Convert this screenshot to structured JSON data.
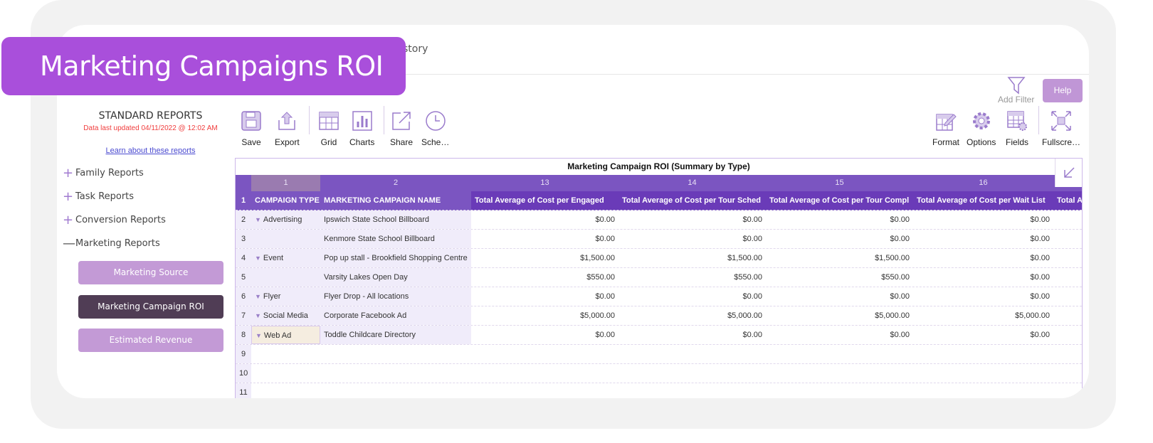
{
  "banner": {
    "title": "Marketing Campaigns ROI"
  },
  "nav": {
    "partial_tab": "story"
  },
  "sidebar": {
    "title": "STANDARD REPORTS",
    "updated": "Data last updated 04/11/2022 @ 12:02 AM",
    "learn_link": "Learn about these reports",
    "categories": [
      {
        "label": "Family Reports",
        "state": "collapsed"
      },
      {
        "label": "Task Reports",
        "state": "collapsed"
      },
      {
        "label": "Conversion Reports",
        "state": "collapsed"
      },
      {
        "label": "Marketing Reports",
        "state": "expanded"
      }
    ],
    "reports": [
      {
        "label": "Marketing Source",
        "active": false
      },
      {
        "label": "Marketing Campaign ROI",
        "active": true
      },
      {
        "label": "Estimated Revenue",
        "active": false
      }
    ],
    "colors": {
      "inactive": "#c39ad6",
      "active": "#503d55"
    }
  },
  "toolbar": {
    "left": [
      {
        "label": "Save",
        "icon": "save-icon"
      },
      {
        "label": "Export",
        "icon": "export-icon"
      },
      {
        "label": "Grid",
        "icon": "grid-icon"
      },
      {
        "label": "Charts",
        "icon": "charts-icon"
      },
      {
        "label": "Share",
        "icon": "share-icon"
      },
      {
        "label": "Sche…",
        "icon": "clock-icon"
      }
    ],
    "right": [
      {
        "label": "Format",
        "icon": "format-icon"
      },
      {
        "label": "Options",
        "icon": "gear-icon"
      },
      {
        "label": "Fields",
        "icon": "fields-icon"
      },
      {
        "label": "Fullscre…",
        "icon": "fullscreen-icon"
      }
    ],
    "add_filter": "Add Filter",
    "help": "Help"
  },
  "grid": {
    "title": "Marketing Campaign ROI (Summary by Type)",
    "column_numbers": [
      "1",
      "2",
      "13",
      "14",
      "15",
      "16",
      ""
    ],
    "headers": [
      "CAMPAIGN TYPE",
      "MARKETING CAMPAIGN NAME",
      "Total Average of Cost per Engaged",
      "Total Average of Cost per Tour Sched",
      "Total Average of Cost per Tour Compl",
      "Total Average of Cost per Wait List",
      "Total Av"
    ],
    "rows": [
      {
        "n": "2",
        "type": "Advertising",
        "name": "Ipswich State School Billboard",
        "v": [
          "$0.00",
          "$0.00",
          "$0.00",
          "$0.00"
        ]
      },
      {
        "n": "3",
        "type": "",
        "name": "Kenmore State School Billboard",
        "v": [
          "$0.00",
          "$0.00",
          "$0.00",
          "$0.00"
        ]
      },
      {
        "n": "4",
        "type": "Event",
        "name": "Pop up stall - Brookfield Shopping Centre",
        "v": [
          "$1,500.00",
          "$1,500.00",
          "$1,500.00",
          "$0.00"
        ]
      },
      {
        "n": "5",
        "type": "",
        "name": "Varsity Lakes Open Day",
        "v": [
          "$550.00",
          "$550.00",
          "$550.00",
          "$0.00"
        ]
      },
      {
        "n": "6",
        "type": "Flyer",
        "name": "Flyer Drop - All locations",
        "v": [
          "$0.00",
          "$0.00",
          "$0.00",
          "$0.00"
        ]
      },
      {
        "n": "7",
        "type": "Social Media",
        "name": "Corporate Facebook Ad",
        "v": [
          "$5,000.00",
          "$5,000.00",
          "$5,000.00",
          "$5,000.00"
        ]
      },
      {
        "n": "8",
        "type": "Web Ad",
        "name": "Toddle Childcare Directory",
        "v": [
          "$0.00",
          "$0.00",
          "$0.00",
          "$0.00"
        ],
        "selected": true
      },
      {
        "n": "9",
        "type": "",
        "name": "",
        "v": [
          "",
          "",
          "",
          ""
        ]
      },
      {
        "n": "10",
        "type": "",
        "name": "",
        "v": [
          "",
          "",
          "",
          ""
        ]
      },
      {
        "n": "11",
        "type": "",
        "name": "",
        "v": [
          "",
          "",
          "",
          ""
        ]
      }
    ]
  }
}
